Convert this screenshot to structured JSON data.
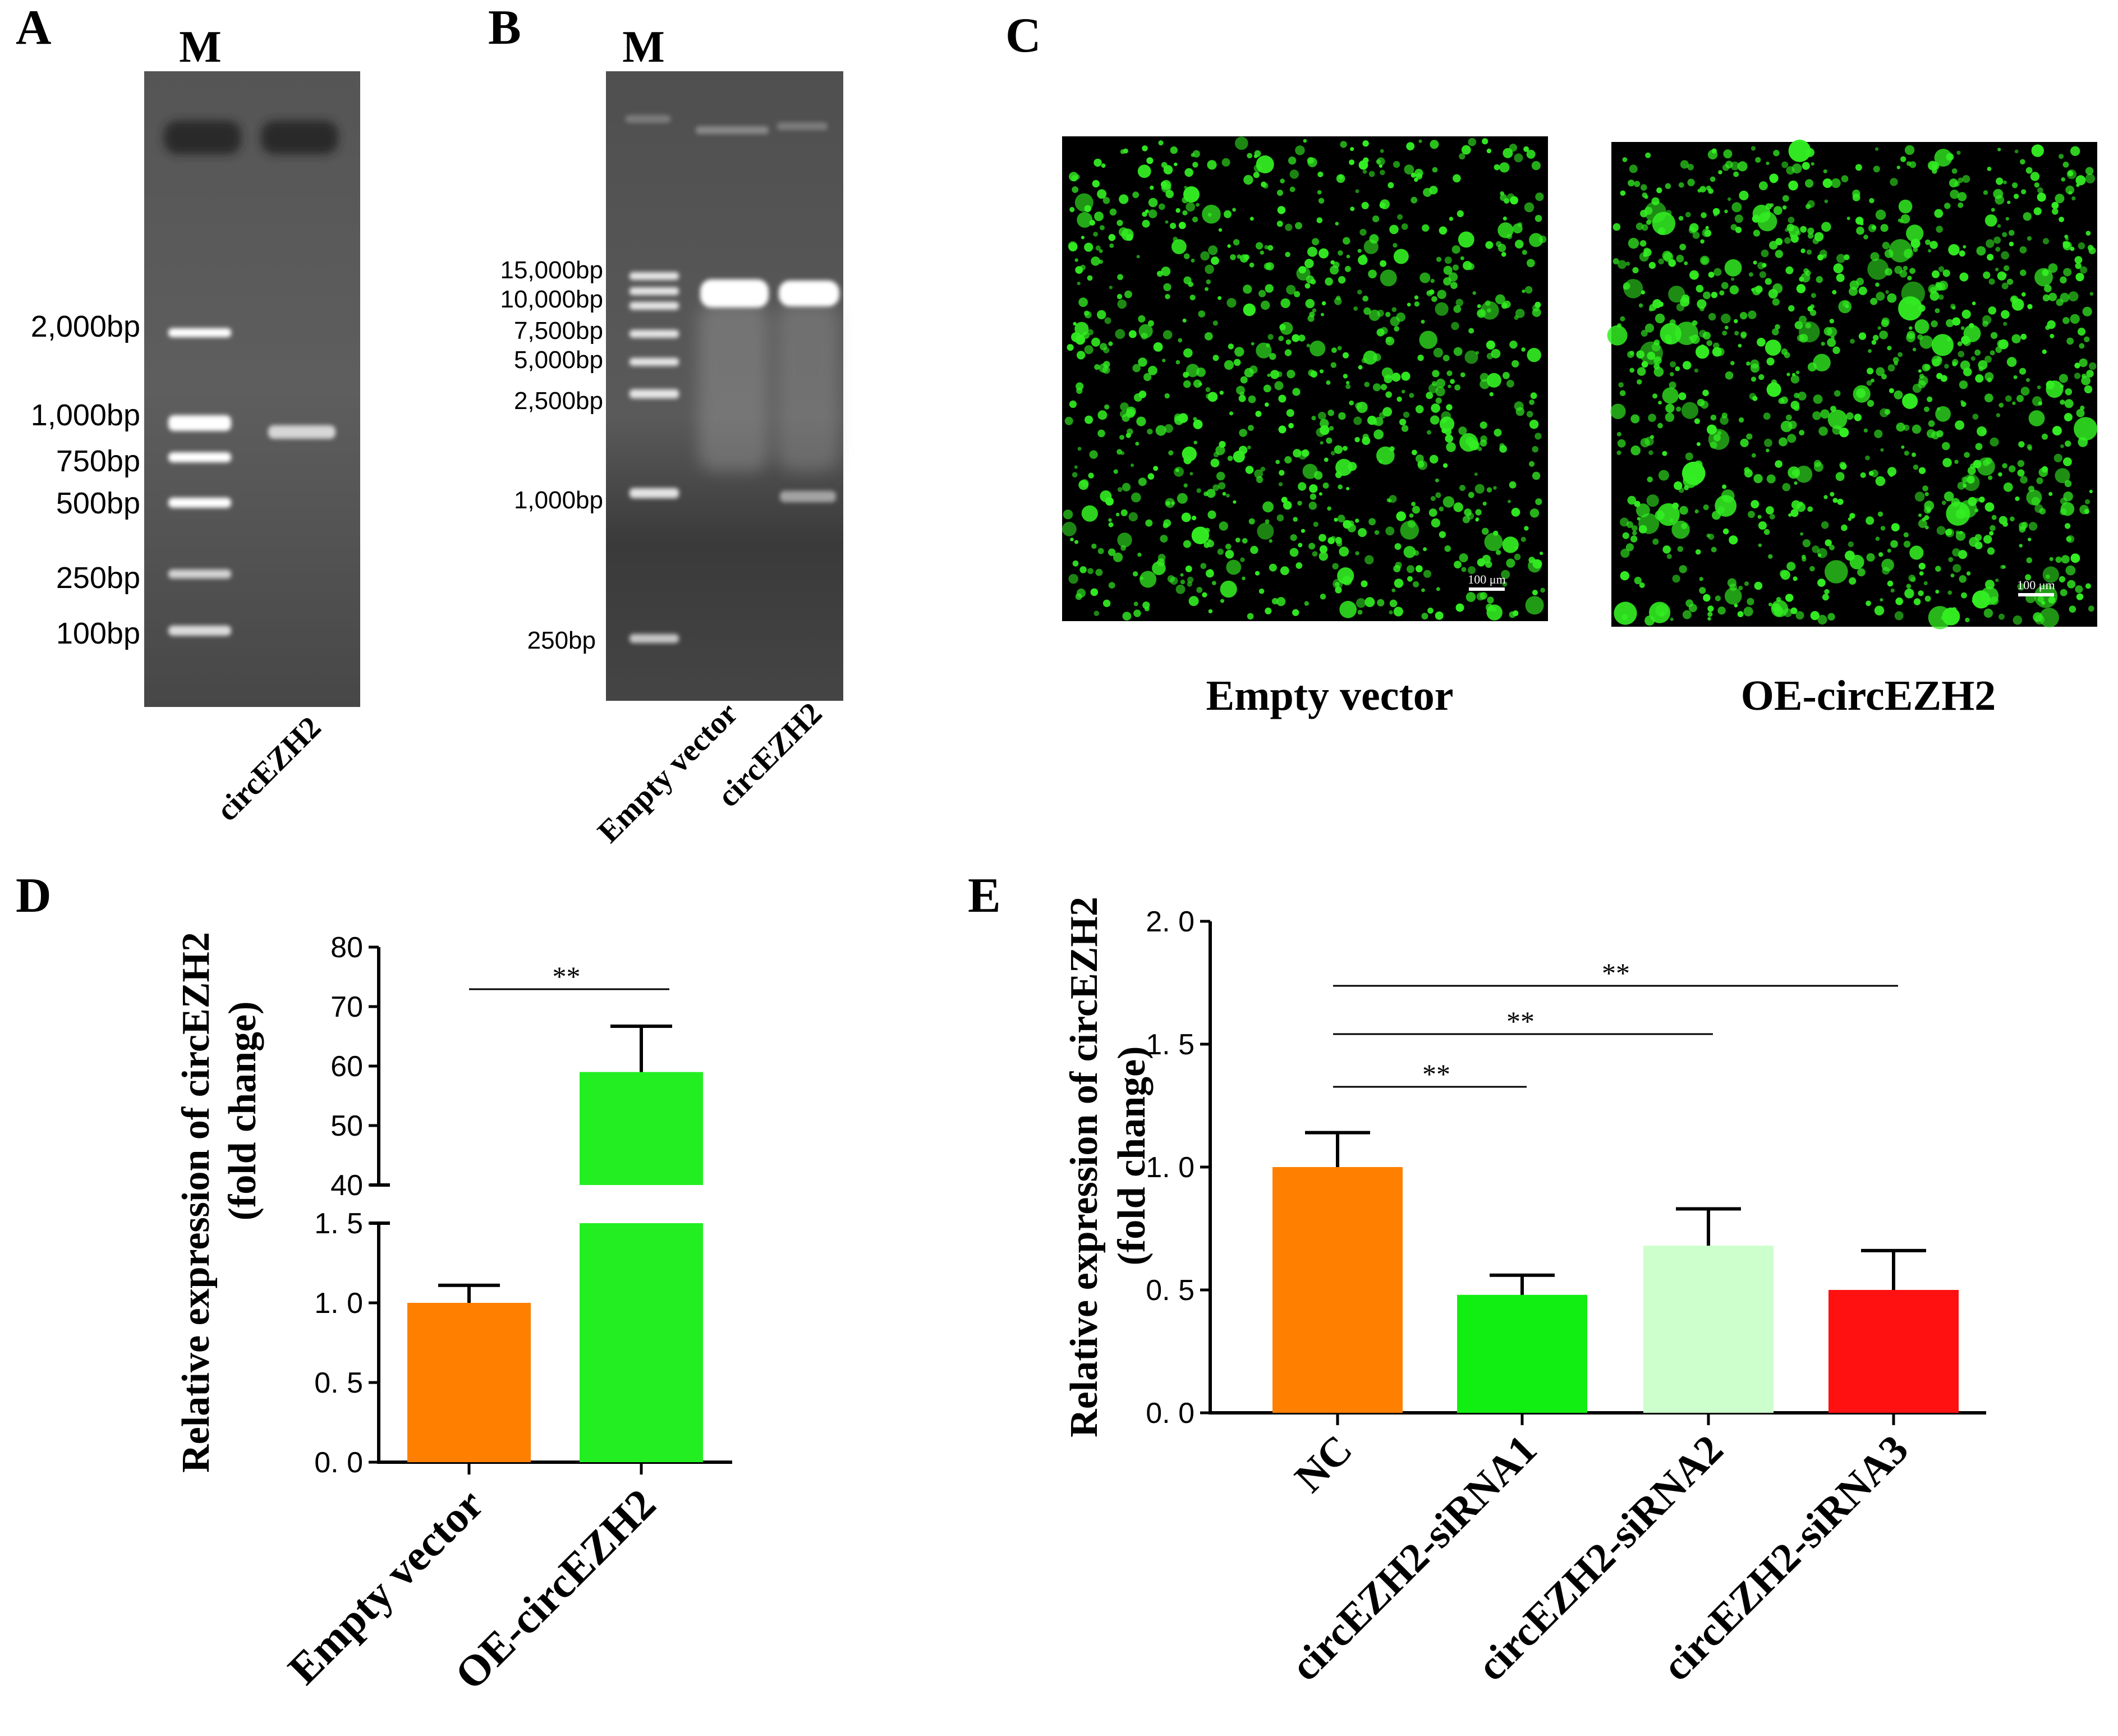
{
  "panels": {
    "A": {
      "label": "A",
      "marker_lane_label": "M",
      "ladder": [
        "2,000bp",
        "1,000bp",
        "750bp",
        "500bp",
        "250bp",
        "100bp"
      ],
      "lane_labels": [
        "circEZH2"
      ]
    },
    "B": {
      "label": "B",
      "marker_lane_label": "M",
      "ladder": [
        "15,000bp",
        "10,000bp",
        "7,500bp",
        "5,000bp",
        "2,500bp",
        "1,000bp",
        "250bp"
      ],
      "lane_labels": [
        "Empty vector",
        "circEZH2"
      ]
    },
    "C": {
      "label": "C",
      "images": [
        {
          "caption": "Empty vector",
          "scale_bar": "100 μm"
        },
        {
          "caption": "OE-circEZH2",
          "scale_bar": "100 μm"
        }
      ],
      "colors": {
        "fluorescence": "#33ee22",
        "background": "#000000"
      }
    },
    "D": {
      "label": "D"
    },
    "E": {
      "label": "E"
    }
  },
  "chart_data": [
    {
      "panel": "D",
      "type": "bar",
      "categories": [
        "Empty vector",
        "OE-circEZH2"
      ],
      "values": [
        1.0,
        59.0
      ],
      "errors": [
        0.11,
        7.7
      ],
      "colors": [
        "#ff8000",
        "#22ee22"
      ],
      "ylabel": [
        "Relative expression of circEZH2",
        "(fold change)"
      ],
      "y_axis_break": {
        "lower": [
          0,
          1.5
        ],
        "upper": [
          40,
          80
        ]
      },
      "yticks_lower": [
        "0. 0",
        "0. 5",
        "1. 0",
        "1. 5"
      ],
      "yticks_upper": [
        "40",
        "50",
        "60",
        "70",
        "80"
      ],
      "significance": [
        {
          "from": 0,
          "to": 1,
          "label": "**"
        }
      ],
      "grid": false,
      "legend": "none"
    },
    {
      "panel": "E",
      "type": "bar",
      "categories": [
        "NC",
        "circEZH2-siRNA1",
        "circEZH2-siRNA2",
        "circEZH2-siRNA3"
      ],
      "values": [
        1.0,
        0.48,
        0.68,
        0.5
      ],
      "errors": [
        0.14,
        0.08,
        0.15,
        0.16
      ],
      "colors": [
        "#ff8000",
        "#11ee11",
        "#ccffcc",
        "#ff1111"
      ],
      "ylabel": [
        "Relative expression of circEZH2",
        "(fold change)"
      ],
      "ylim": [
        0,
        2.0
      ],
      "yticks": [
        "0. 0",
        "0. 5",
        "1. 0",
        "1. 5",
        "2. 0"
      ],
      "significance": [
        {
          "from": 0,
          "to": 1,
          "label": "**"
        },
        {
          "from": 0,
          "to": 2,
          "label": "**"
        },
        {
          "from": 0,
          "to": 3,
          "label": "**"
        }
      ],
      "grid": false,
      "legend": "none"
    }
  ]
}
